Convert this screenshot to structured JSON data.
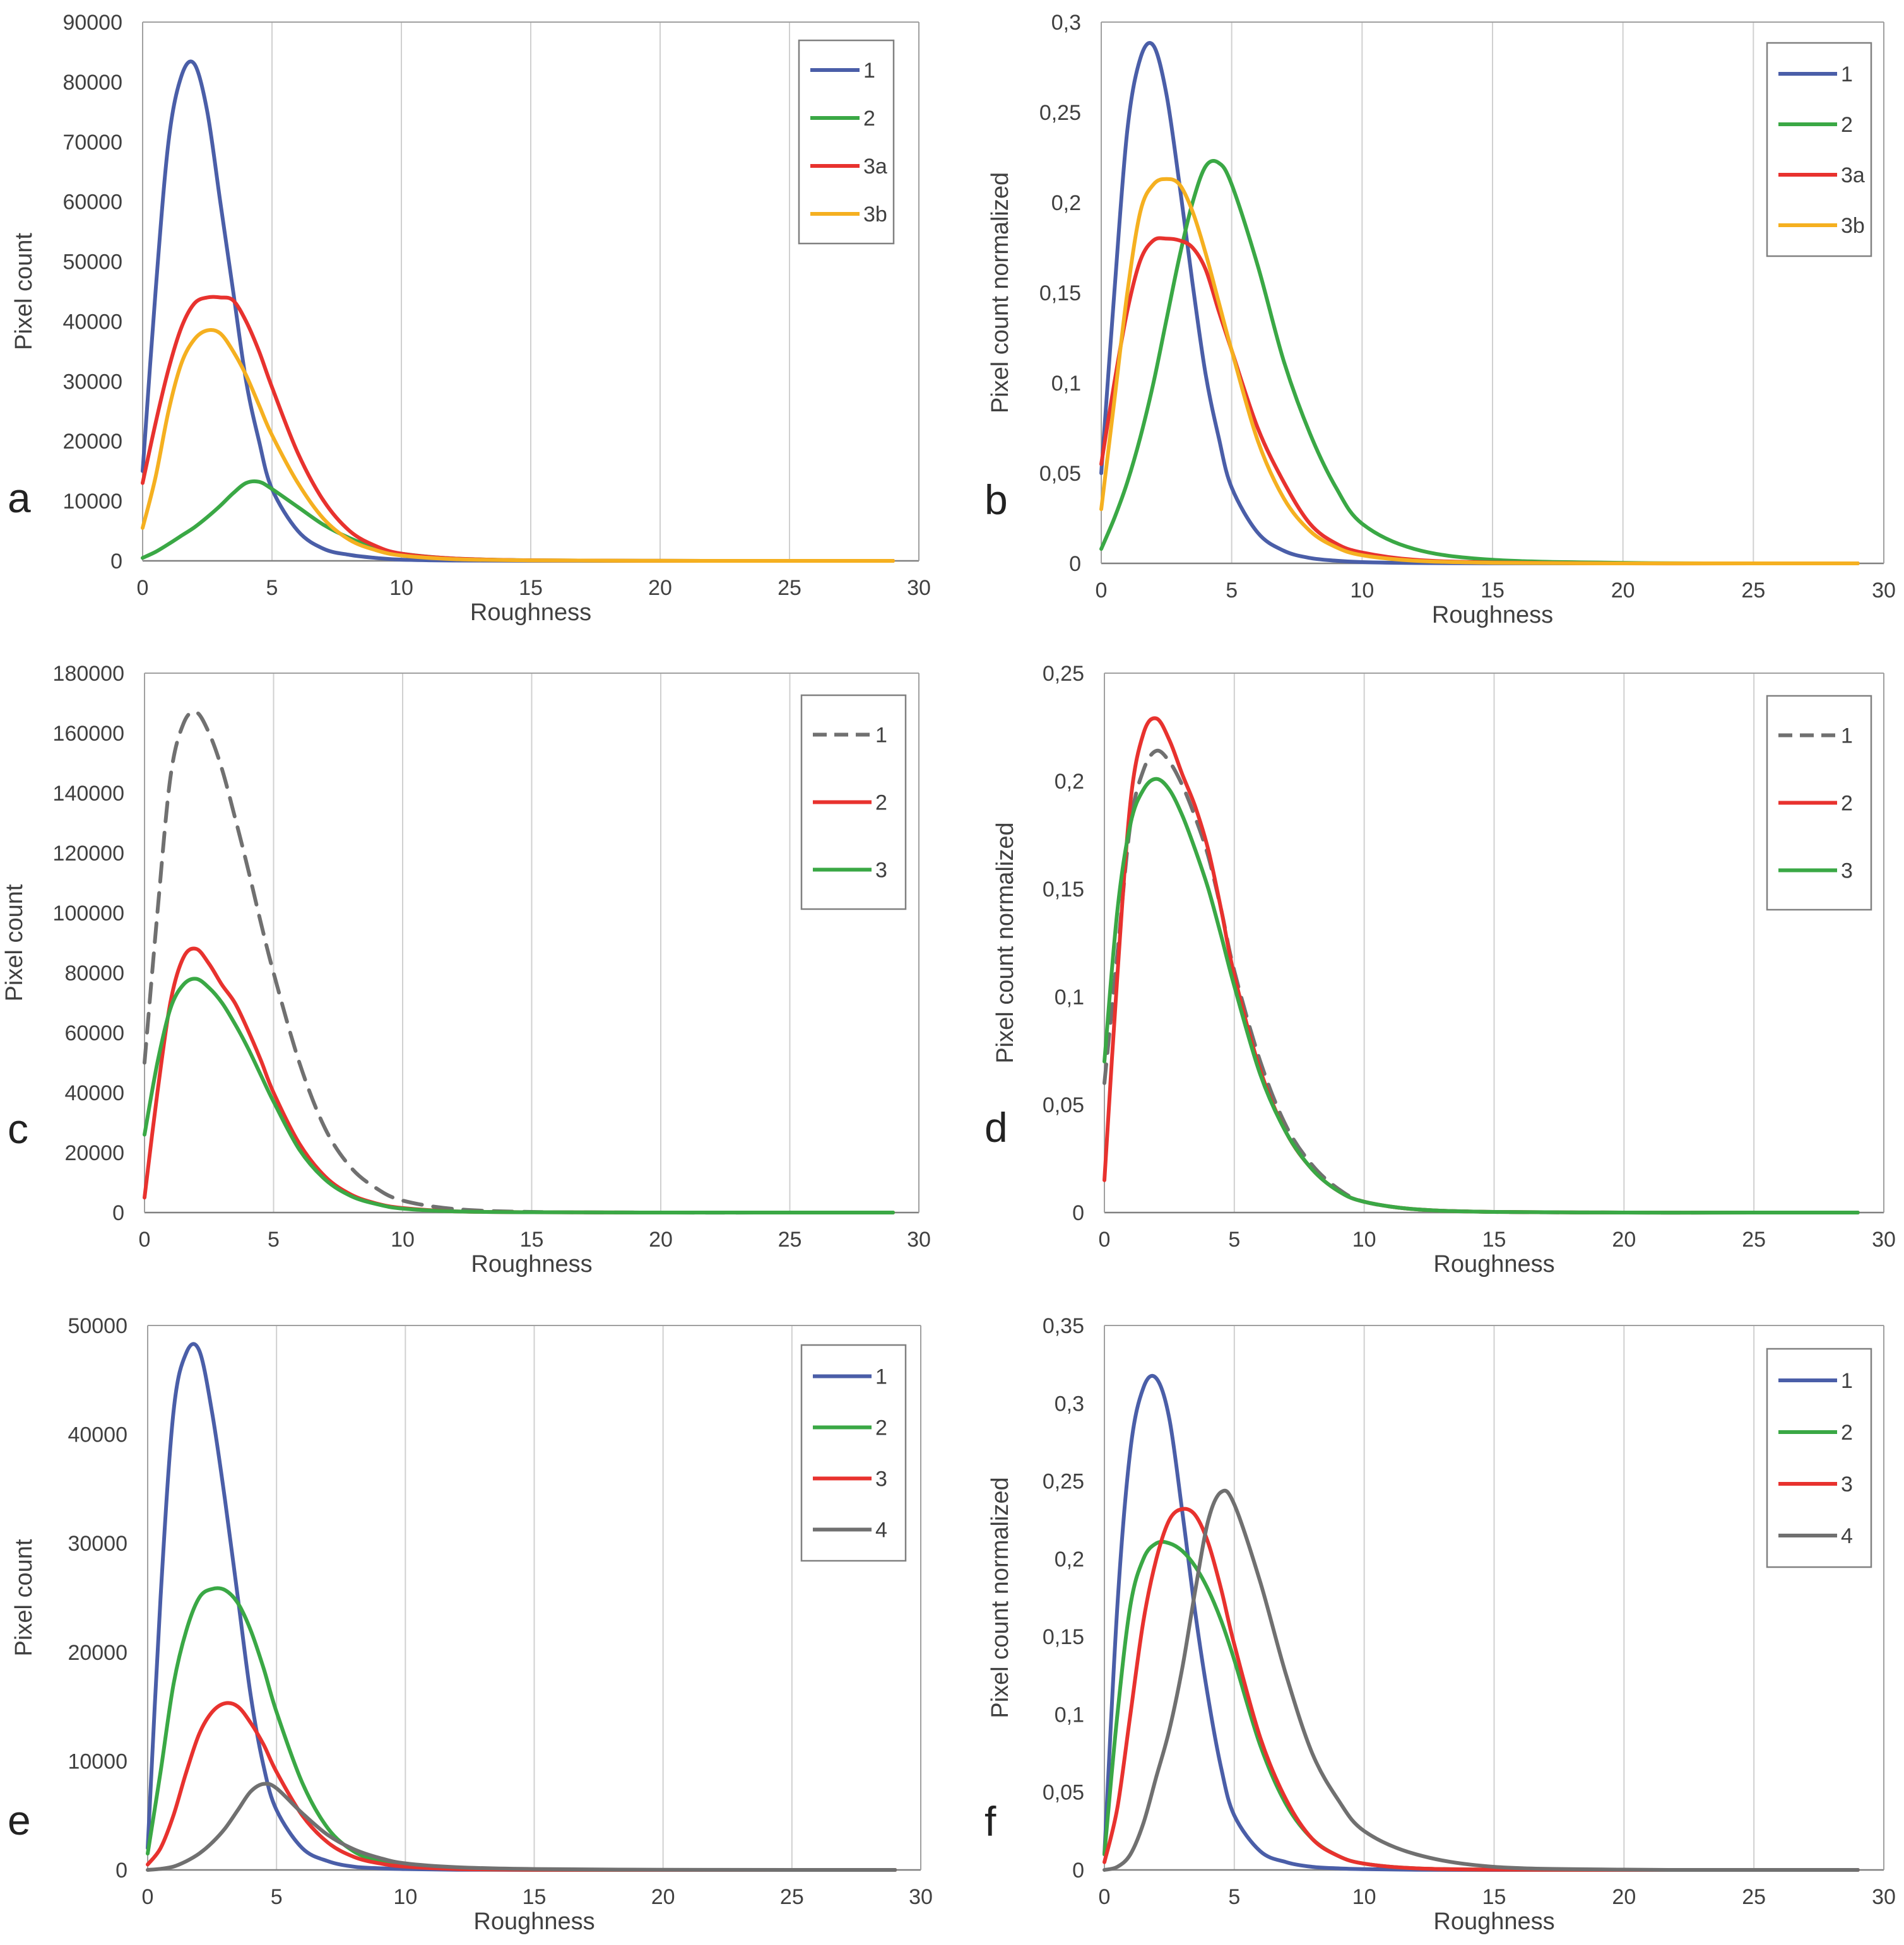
{
  "chart_data": [
    {
      "panel": "a",
      "type": "line",
      "xlabel": "Roughness",
      "ylabel": "Pixel count",
      "xlim": [
        0,
        30
      ],
      "ylim": [
        0,
        90000
      ],
      "xticks": [
        "0",
        "5",
        "10",
        "15",
        "20",
        "25",
        "30"
      ],
      "yticks": [
        "0",
        "10000",
        "20000",
        "30000",
        "40000",
        "50000",
        "60000",
        "70000",
        "80000",
        "90000"
      ],
      "grid": "vertical",
      "legend": "top-right",
      "x": [
        0,
        0.5,
        1,
        1.5,
        2,
        2.5,
        3,
        3.5,
        4,
        4.5,
        5,
        6,
        7,
        8,
        9,
        10,
        12,
        15,
        20,
        25,
        29
      ],
      "series": [
        {
          "name": "1",
          "color": "#4a5ea8",
          "dash": false,
          "values": [
            15000,
            45000,
            70000,
            81000,
            83000,
            75000,
            60000,
            45000,
            30000,
            20000,
            12000,
            5000,
            2000,
            1000,
            500,
            200,
            50,
            10,
            0,
            0,
            0
          ]
        },
        {
          "name": "2",
          "color": "#3aa845",
          "dash": false,
          "values": [
            500,
            1500,
            2800,
            4200,
            5600,
            7300,
            9200,
            11300,
            13000,
            13200,
            12000,
            9000,
            6000,
            3800,
            2200,
            1200,
            400,
            100,
            10,
            0,
            0
          ]
        },
        {
          "name": "3a",
          "color": "#e8322e",
          "dash": false,
          "values": [
            13000,
            23000,
            32000,
            39000,
            43000,
            44000,
            44000,
            43500,
            40000,
            35000,
            29000,
            18000,
            10000,
            5000,
            2500,
            1200,
            400,
            100,
            10,
            0,
            0
          ]
        },
        {
          "name": "3b",
          "color": "#f5b020",
          "dash": false,
          "values": [
            5500,
            14000,
            25000,
            33000,
            37000,
            38500,
            38000,
            35000,
            31000,
            26000,
            21000,
            13000,
            7000,
            3500,
            1800,
            900,
            300,
            80,
            10,
            0,
            0
          ]
        }
      ]
    },
    {
      "panel": "b",
      "type": "line",
      "xlabel": "Roughness",
      "ylabel": "Pixel count normalized",
      "xlim": [
        0,
        30
      ],
      "ylim": [
        0,
        0.3
      ],
      "xticks": [
        "0",
        "5",
        "10",
        "15",
        "20",
        "25",
        "30"
      ],
      "yticks": [
        "0",
        "0,05",
        "0,1",
        "0,15",
        "0,2",
        "0,25",
        "0,3"
      ],
      "grid": "vertical",
      "legend": "top-right",
      "x": [
        0,
        0.5,
        1,
        1.5,
        2,
        2.5,
        3,
        3.5,
        4,
        4.5,
        5,
        6,
        7,
        8,
        9,
        10,
        12,
        15,
        20,
        25,
        29
      ],
      "series": [
        {
          "name": "1",
          "color": "#4a5ea8",
          "dash": false,
          "values": [
            0.05,
            0.15,
            0.24,
            0.28,
            0.287,
            0.26,
            0.21,
            0.155,
            0.105,
            0.07,
            0.042,
            0.017,
            0.007,
            0.003,
            0.0015,
            0.0007,
            0.0002,
            3e-05,
            0,
            0,
            0
          ]
        },
        {
          "name": "2",
          "color": "#3aa845",
          "dash": false,
          "values": [
            0.008,
            0.025,
            0.045,
            0.07,
            0.1,
            0.135,
            0.17,
            0.2,
            0.22,
            0.222,
            0.21,
            0.165,
            0.112,
            0.072,
            0.042,
            0.022,
            0.008,
            0.002,
            0.0003,
            0,
            0
          ]
        },
        {
          "name": "3a",
          "color": "#e8322e",
          "dash": false,
          "values": [
            0.055,
            0.1,
            0.14,
            0.168,
            0.179,
            0.18,
            0.179,
            0.175,
            0.163,
            0.14,
            0.118,
            0.075,
            0.045,
            0.022,
            0.011,
            0.006,
            0.002,
            0.0005,
            0,
            0,
            0
          ]
        },
        {
          "name": "3b",
          "color": "#f5b020",
          "dash": false,
          "values": [
            0.03,
            0.09,
            0.15,
            0.195,
            0.21,
            0.213,
            0.21,
            0.195,
            0.172,
            0.145,
            0.118,
            0.068,
            0.036,
            0.018,
            0.009,
            0.0045,
            0.0015,
            0.0003,
            0,
            0,
            0
          ]
        }
      ]
    },
    {
      "panel": "c",
      "type": "line",
      "xlabel": "Roughness",
      "ylabel": "Pixel count",
      "xlim": [
        0,
        30
      ],
      "ylim": [
        0,
        180000
      ],
      "xticks": [
        "0",
        "5",
        "10",
        "15",
        "20",
        "25",
        "30"
      ],
      "yticks": [
        "0",
        "20000",
        "40000",
        "60000",
        "80000",
        "100000",
        "120000",
        "140000",
        "160000",
        "180000"
      ],
      "grid": "vertical",
      "legend": "top-right",
      "x": [
        0,
        0.5,
        1,
        1.5,
        2,
        2.5,
        3,
        3.5,
        4,
        4.5,
        5,
        6,
        7,
        8,
        9,
        10,
        12,
        15,
        20,
        25,
        29
      ],
      "series": [
        {
          "name": "1",
          "color": "#707070",
          "dash": true,
          "values": [
            50000,
            100000,
            145000,
            163000,
            167000,
            160000,
            148000,
            132000,
            115000,
            97000,
            80000,
            50000,
            28000,
            15000,
            8000,
            4000,
            1200,
            200,
            0,
            0,
            0
          ]
        },
        {
          "name": "2",
          "color": "#e8322e",
          "dash": false,
          "values": [
            5000,
            40000,
            70000,
            85000,
            88000,
            83000,
            76000,
            70000,
            61000,
            51000,
            40000,
            23000,
            12000,
            6000,
            3000,
            1500,
            400,
            100,
            0,
            0,
            0
          ]
        },
        {
          "name": "3",
          "color": "#3aa845",
          "dash": false,
          "values": [
            26000,
            50000,
            68000,
            76000,
            78000,
            75000,
            70000,
            63000,
            55000,
            46000,
            37000,
            21000,
            11000,
            5500,
            2800,
            1300,
            400,
            100,
            0,
            0,
            0
          ]
        }
      ]
    },
    {
      "panel": "d",
      "type": "line",
      "xlabel": "Roughness",
      "ylabel": "Pixel count normalized",
      "xlim": [
        0,
        30
      ],
      "ylim": [
        0,
        0.25
      ],
      "xticks": [
        "0",
        "5",
        "10",
        "15",
        "20",
        "25",
        "30"
      ],
      "yticks": [
        "0",
        "0,05",
        "0,1",
        "0,15",
        "0,2",
        "0,25"
      ],
      "grid": "vertical",
      "legend": "top-right",
      "x": [
        0,
        0.5,
        1,
        1.5,
        2,
        2.5,
        3,
        3.5,
        4,
        4.5,
        5,
        6,
        7,
        8,
        9,
        10,
        12,
        15,
        20,
        25,
        29
      ],
      "series": [
        {
          "name": "1",
          "color": "#707070",
          "dash": true,
          "values": [
            0.06,
            0.12,
            0.18,
            0.205,
            0.214,
            0.209,
            0.198,
            0.183,
            0.165,
            0.14,
            0.112,
            0.07,
            0.04,
            0.022,
            0.011,
            0.005,
            0.0015,
            0.0003,
            0,
            0,
            0
          ]
        },
        {
          "name": "2",
          "color": "#e8322e",
          "dash": false,
          "values": [
            0.015,
            0.11,
            0.19,
            0.222,
            0.229,
            0.219,
            0.203,
            0.188,
            0.168,
            0.14,
            0.11,
            0.066,
            0.037,
            0.02,
            0.01,
            0.005,
            0.0015,
            0.0003,
            0,
            0,
            0
          ]
        },
        {
          "name": "3",
          "color": "#3aa845",
          "dash": false,
          "values": [
            0.07,
            0.14,
            0.18,
            0.196,
            0.201,
            0.196,
            0.184,
            0.168,
            0.15,
            0.128,
            0.105,
            0.064,
            0.037,
            0.02,
            0.01,
            0.005,
            0.0015,
            0.0003,
            0,
            0,
            0
          ]
        }
      ]
    },
    {
      "panel": "e",
      "type": "line",
      "xlabel": "Roughness",
      "ylabel": "Pixel count",
      "xlim": [
        0,
        30
      ],
      "ylim": [
        0,
        50000
      ],
      "xticks": [
        "0",
        "5",
        "10",
        "15",
        "20",
        "25",
        "30"
      ],
      "yticks": [
        "0",
        "10000",
        "20000",
        "30000",
        "40000",
        "50000"
      ],
      "grid": "vertical",
      "legend": "top-right",
      "x": [
        0,
        0.5,
        1,
        1.5,
        2,
        2.5,
        3,
        3.5,
        4,
        4.5,
        5,
        6,
        7,
        8,
        9,
        10,
        12,
        15,
        20,
        25,
        29
      ],
      "series": [
        {
          "name": "1",
          "color": "#4a5ea8",
          "dash": false,
          "values": [
            2000,
            25000,
            42000,
            47500,
            47700,
            42000,
            34000,
            25000,
            16000,
            9500,
            5500,
            2000,
            800,
            300,
            150,
            80,
            20,
            0,
            0,
            0,
            0
          ]
        },
        {
          "name": "2",
          "color": "#3aa845",
          "dash": false,
          "values": [
            1500,
            9000,
            17000,
            22000,
            25000,
            25800,
            25700,
            24500,
            22000,
            18500,
            14500,
            8000,
            3800,
            1700,
            800,
            400,
            100,
            20,
            0,
            0,
            0
          ]
        },
        {
          "name": "3",
          "color": "#e8322e",
          "dash": false,
          "values": [
            500,
            2000,
            5000,
            9000,
            12500,
            14500,
            15300,
            15000,
            13500,
            11500,
            9000,
            5000,
            2500,
            1200,
            600,
            300,
            80,
            20,
            0,
            0,
            0
          ]
        },
        {
          "name": "4",
          "color": "#707070",
          "dash": false,
          "values": [
            0,
            100,
            300,
            800,
            1500,
            2500,
            3800,
            5500,
            7200,
            7900,
            7500,
            5200,
            3200,
            1900,
            1100,
            600,
            250,
            80,
            20,
            0,
            0
          ]
        }
      ]
    },
    {
      "panel": "f",
      "type": "line",
      "xlabel": "Roughness",
      "ylabel": "Pixel count normalized",
      "xlim": [
        0,
        30
      ],
      "ylim": [
        0,
        0.35
      ],
      "xticks": [
        "0",
        "5",
        "10",
        "15",
        "20",
        "25",
        "30"
      ],
      "yticks": [
        "0",
        "0,05",
        "0,1",
        "0,15",
        "0,2",
        "0,25",
        "0,3",
        "0,35"
      ],
      "grid": "vertical",
      "legend": "top-right",
      "x": [
        0,
        0.5,
        1,
        1.5,
        2,
        2.5,
        3,
        3.5,
        4,
        4.5,
        5,
        6,
        7,
        8,
        9,
        10,
        12,
        15,
        20,
        25,
        29
      ],
      "series": [
        {
          "name": "1",
          "color": "#4a5ea8",
          "dash": false,
          "values": [
            0.01,
            0.17,
            0.27,
            0.31,
            0.316,
            0.29,
            0.23,
            0.165,
            0.11,
            0.065,
            0.035,
            0.012,
            0.005,
            0.002,
            0.001,
            0.0005,
            0.0001,
            0,
            0,
            0,
            0
          ]
        },
        {
          "name": "2",
          "color": "#3aa845",
          "dash": false,
          "values": [
            0.01,
            0.1,
            0.17,
            0.2,
            0.21,
            0.21,
            0.205,
            0.195,
            0.18,
            0.16,
            0.135,
            0.08,
            0.042,
            0.02,
            0.009,
            0.004,
            0.001,
            0.0002,
            0,
            0,
            0
          ]
        },
        {
          "name": "3",
          "color": "#e8322e",
          "dash": false,
          "values": [
            0.005,
            0.04,
            0.1,
            0.16,
            0.2,
            0.225,
            0.232,
            0.228,
            0.21,
            0.18,
            0.145,
            0.085,
            0.045,
            0.02,
            0.009,
            0.004,
            0.001,
            0.0002,
            0,
            0,
            0
          ]
        },
        {
          "name": "4",
          "color": "#707070",
          "dash": false,
          "values": [
            0,
            0.002,
            0.01,
            0.03,
            0.06,
            0.09,
            0.13,
            0.18,
            0.225,
            0.243,
            0.235,
            0.185,
            0.125,
            0.075,
            0.045,
            0.025,
            0.01,
            0.002,
            0.0002,
            0,
            0
          ]
        }
      ]
    }
  ]
}
